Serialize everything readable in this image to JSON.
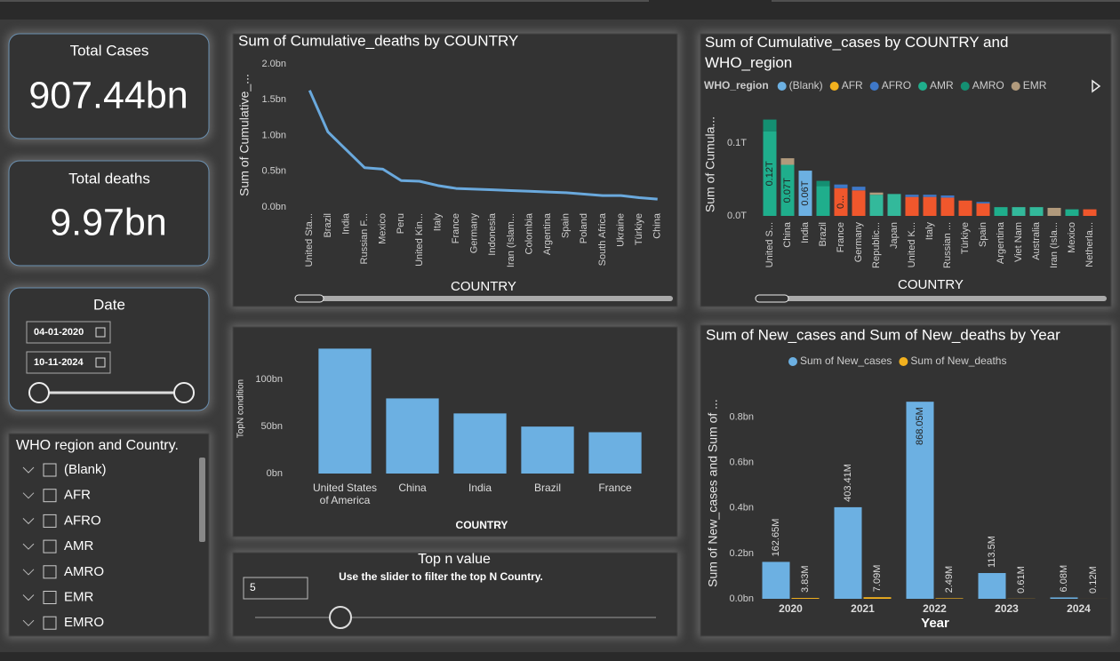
{
  "cards": [
    {
      "label": "Total Cases",
      "value": "907.44bn"
    },
    {
      "label": "Total deaths",
      "value": "9.97bn"
    }
  ],
  "date_slicer": {
    "title": "Date",
    "start": "04-01-2020",
    "end": "10-11-2024"
  },
  "region_slicer": {
    "title": "WHO region and Country.",
    "items": [
      "(Blank)",
      "AFR",
      "AFRO",
      "AMR",
      "AMRO",
      "EMR",
      "EMRO"
    ]
  },
  "topn_slicer": {
    "title": "Top n value",
    "subtitle": "Use the slider to filter the top N Country.",
    "value": 5
  },
  "chart_data": [
    {
      "type": "line",
      "title": "Sum of Cumulative_deaths by COUNTRY",
      "x_label": "COUNTRY",
      "y_label": "Sum of Cumulative_...",
      "categories": [
        "United Sta...",
        "Brazil",
        "India",
        "Russian F...",
        "Mexico",
        "Peru",
        "United Kin...",
        "Italy",
        "France",
        "Germany",
        "Indonesia",
        "Iran (Islam...",
        "Colombia",
        "Argentina",
        "Spain",
        "Poland",
        "South Africa",
        "Ukraine",
        "Türkiye",
        "China"
      ],
      "values": [
        1.63,
        1.05,
        0.8,
        0.55,
        0.53,
        0.37,
        0.36,
        0.3,
        0.26,
        0.25,
        0.24,
        0.23,
        0.22,
        0.21,
        0.2,
        0.18,
        0.16,
        0.16,
        0.13,
        0.11
      ],
      "color": "#6aa9dd",
      "ylim": [
        0,
        2
      ],
      "yticks": [
        {
          "value": 0,
          "label": "0.0bn"
        },
        {
          "value": 0.5,
          "label": "0.5bn"
        },
        {
          "value": 1,
          "label": "1.0bn"
        },
        {
          "value": 1.5,
          "label": "1.5bn"
        },
        {
          "value": 2,
          "label": "2.0bn"
        }
      ],
      "grid": false
    },
    {
      "type": "stacked_bar",
      "title": "Sum of Cumulative_cases by COUNTRY and WHO_region",
      "legend_title": "WHO_region",
      "x_label": "COUNTRY",
      "y_label": "Sum of Cumula...",
      "categories": [
        "United S...",
        "China",
        "India",
        "Brazil",
        "France",
        "Germany",
        "Republic...",
        "Japan",
        "United K...",
        "Italy",
        "Russian ...",
        "Türkiye",
        "Spain",
        "Argentina",
        "Viet Nam",
        "Australia",
        "Iran (Isla...",
        "Mexico",
        "Netherla..."
      ],
      "series": [
        {
          "color": "#f0572c",
          "values": [
            0,
            0,
            0,
            0,
            0.038,
            0.035,
            0,
            0,
            0.026,
            0.026,
            0.025,
            0.021,
            0.017,
            0,
            0,
            0,
            0,
            0,
            0.009
          ],
          "value_labels": [
            null,
            null,
            null,
            null,
            "0...",
            null,
            null,
            null,
            null,
            null,
            null,
            null,
            null,
            null,
            null,
            null,
            null,
            null,
            null
          ]
        },
        {
          "color": "#33b99b",
          "values": [
            0,
            0,
            0,
            0,
            0,
            0,
            0.029,
            0.03,
            0,
            0,
            0,
            0,
            0,
            0,
            0.012,
            0.012,
            0,
            0,
            0
          ]
        },
        {
          "name": "(Blank)",
          "color": "#6cb0e2",
          "values": [
            0,
            0,
            0.062,
            0,
            0,
            0,
            0,
            0,
            0,
            0,
            0,
            0,
            0,
            0,
            0,
            0,
            0,
            0,
            0
          ],
          "value_labels": [
            null,
            null,
            "0.06T",
            null,
            null,
            null,
            null,
            null,
            null,
            null,
            null,
            null,
            null,
            null,
            null,
            null,
            null,
            null,
            null
          ]
        },
        {
          "name": "AFR",
          "color": "#f2b11e",
          "values": [
            0,
            0,
            0,
            0,
            0,
            0,
            0,
            0,
            0,
            0,
            0,
            0,
            0,
            0,
            0,
            0,
            0,
            0,
            0
          ]
        },
        {
          "name": "AFRO",
          "color": "#3f78c8",
          "values": [
            0,
            0,
            0,
            0,
            0.005,
            0.005,
            0,
            0,
            0.003,
            0.003,
            0.003,
            0,
            0.002,
            0,
            0,
            0,
            0,
            0,
            0
          ]
        },
        {
          "name": "AMR",
          "color": "#1fae8c",
          "values": [
            0.116,
            0.07,
            0,
            0.041,
            0,
            0,
            0,
            0,
            0,
            0,
            0,
            0,
            0,
            0.012,
            0,
            0,
            0,
            0.009,
            0
          ],
          "value_labels": [
            "0.12T",
            "0.07T",
            null,
            null,
            null,
            null,
            null,
            null,
            null,
            null,
            null,
            null,
            null,
            null,
            null,
            null,
            null,
            null,
            null
          ]
        },
        {
          "name": "AMRO",
          "color": "#148f72",
          "values": [
            0.016,
            0,
            0,
            0.007,
            0,
            0,
            0,
            0,
            0,
            0,
            0,
            0,
            0,
            0,
            0,
            0,
            0,
            0,
            0
          ]
        },
        {
          "name": "EMR",
          "color": "#b19a7c",
          "values": [
            0,
            0.009,
            0,
            0,
            0,
            0,
            0.003,
            0,
            0,
            0,
            0,
            0,
            0,
            0,
            0,
            0,
            0.011,
            0,
            0
          ]
        }
      ],
      "ylim": [
        0,
        0.14
      ],
      "yticks": [
        {
          "value": 0,
          "label": "0.0T"
        },
        {
          "value": 0.1,
          "label": "0.1T"
        }
      ],
      "grid": false
    },
    {
      "type": "bar",
      "x_label": "COUNTRY",
      "y_label": "TopN condition",
      "categories": [
        "United States of America",
        "China",
        "India",
        "Brazil",
        "France"
      ],
      "values": [
        133,
        80,
        64,
        50,
        44
      ],
      "color": "#6cb0e2",
      "ylim": [
        0,
        140
      ],
      "yticks": [
        {
          "value": 0,
          "label": "0bn"
        },
        {
          "value": 50,
          "label": "50bn"
        },
        {
          "value": 100,
          "label": "100bn"
        }
      ],
      "grid": false
    },
    {
      "type": "grouped_bar",
      "title": "Sum of New_cases and Sum of New_deaths by Year",
      "x_label": "Year",
      "y_label": "Sum of New_cases and Sum of ...",
      "categories": [
        "2020",
        "2021",
        "2022",
        "2023",
        "2024"
      ],
      "series": [
        {
          "name": "Sum of New_cases",
          "color": "#6cb0e2",
          "values": [
            0.16265,
            0.40341,
            0.86805,
            0.1135,
            0.00608
          ],
          "value_labels": [
            "162.65M",
            "403.41M",
            "868.05M",
            "113.5M",
            "6.08M"
          ]
        },
        {
          "name": "Sum of New_deaths",
          "color": "#f2b11e",
          "values": [
            0.00383,
            0.00709,
            0.00249,
            0.00061,
            0.00012
          ],
          "value_labels": [
            "3.83M",
            "7.09M",
            "2.49M",
            "0.61M",
            "0.12M"
          ]
        }
      ],
      "ylim": [
        0,
        0.9
      ],
      "yticks": [
        {
          "value": 0,
          "label": "0.0bn"
        },
        {
          "value": 0.2,
          "label": "0.2bn"
        },
        {
          "value": 0.4,
          "label": "0.4bn"
        },
        {
          "value": 0.6,
          "label": "0.6bn"
        },
        {
          "value": 0.8,
          "label": "0.8bn"
        }
      ],
      "grid": false
    }
  ]
}
